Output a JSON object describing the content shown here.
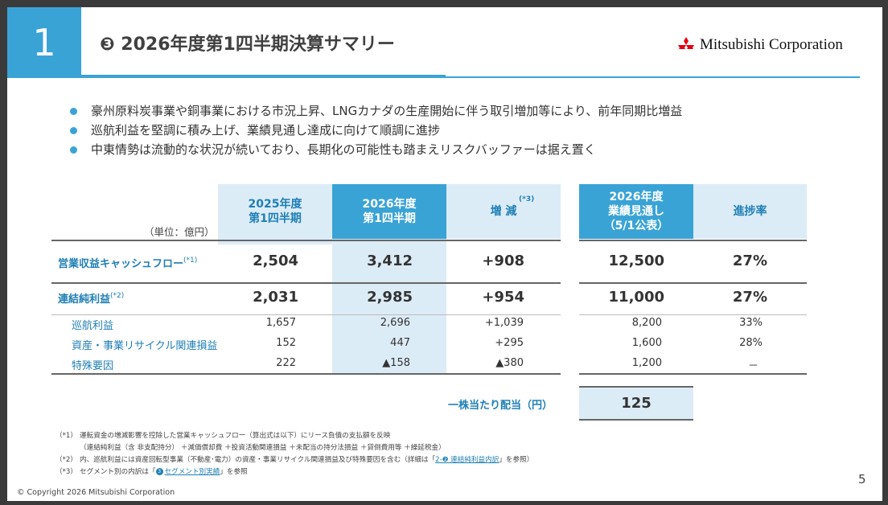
{
  "header": {
    "section_number": "1",
    "title": "❸ 2026年度第1四半期決算サマリー",
    "logo_text": "Mitsubishi Corporation"
  },
  "bullets": [
    "豪州原料炭事業や銅事業における市況上昇、LNGカナダの生産開始に伴う取引増加等により、前年同期比増益",
    "巡航利益を堅調に積み上げ、業績見通し達成に向けて順調に進捗",
    "中東情勢は流動的な状況が続いており、長期化の可能性も踏まえリスクバッファーは据え置く"
  ],
  "table": {
    "unit": "（単位：億円）",
    "columns": {
      "prev_q1": [
        "2025年度",
        "第1四半期"
      ],
      "curr_q1": [
        "2026年度",
        "第1四半期"
      ],
      "change": "増 減",
      "change_note": "(*3)",
      "forecast": [
        "2026年度",
        "業績見通し",
        "（5/1公表）"
      ],
      "progress": "進捗率"
    },
    "rows": [
      {
        "label": "営業収益キャッシュフロー",
        "note": "(*1)",
        "prev": "2,504",
        "curr": "3,412",
        "change": "+908",
        "forecast": "12,500",
        "progress": "27%"
      },
      {
        "label": "連結純利益",
        "note": "(*2)",
        "prev": "2,031",
        "curr": "2,985",
        "change": "+954",
        "forecast": "11,000",
        "progress": "27%"
      },
      {
        "label": "巡航利益",
        "prev": "1,657",
        "curr": "2,696",
        "change": "+1,039",
        "forecast": "8,200",
        "progress": "33%"
      },
      {
        "label": "資産・事業リサイクル関連損益",
        "prev": "152",
        "curr": "447",
        "change": "+295",
        "forecast": "1,600",
        "progress": "28%"
      },
      {
        "label": "特殊要因",
        "prev": "222",
        "curr": "▲158",
        "change": "▲380",
        "forecast": "1,200",
        "progress": "－"
      }
    ],
    "dividend": {
      "label": "一株当たり配当（円）",
      "value": "125"
    }
  },
  "notes": {
    "n1_tag": "（*1）",
    "n1_text": "運転資金の増減影響を控除した営業キャッシュフロー（算出式は以下）にリース負債の支払額を反映",
    "n1_formula": "（連結純利益（含 非支配持分） ＋減価償却費 ＋投資活動関連損益 ＋未配当の持分法損益 ＋貸倒費用等 ＋繰延税金）",
    "n2_tag": "（*2）",
    "n2_text_a": "内、巡航利益には資産回転型事業（不動産･電力）の資産・事業リサイクル関連損益及び特殊要因を含む（詳細は「",
    "n2_link": "2-❷ 連結純利益内訳",
    "n2_text_b": "」を参照）",
    "n3_tag": "（*3）",
    "n3_text_a": "セグメント別の内訳は「",
    "n3_circle": "3",
    "n3_link": "セグメント別実績",
    "n3_text_b": "」を参照"
  },
  "footer": {
    "copyright": "© Copyright 2026 Mitsubishi Corporation",
    "page": "5"
  },
  "colors": {
    "accent_blue": "#3aa3d6",
    "light_blue": "#dcecf7",
    "label_blue": "#1f7fb5",
    "logo_red": "#e60012"
  }
}
